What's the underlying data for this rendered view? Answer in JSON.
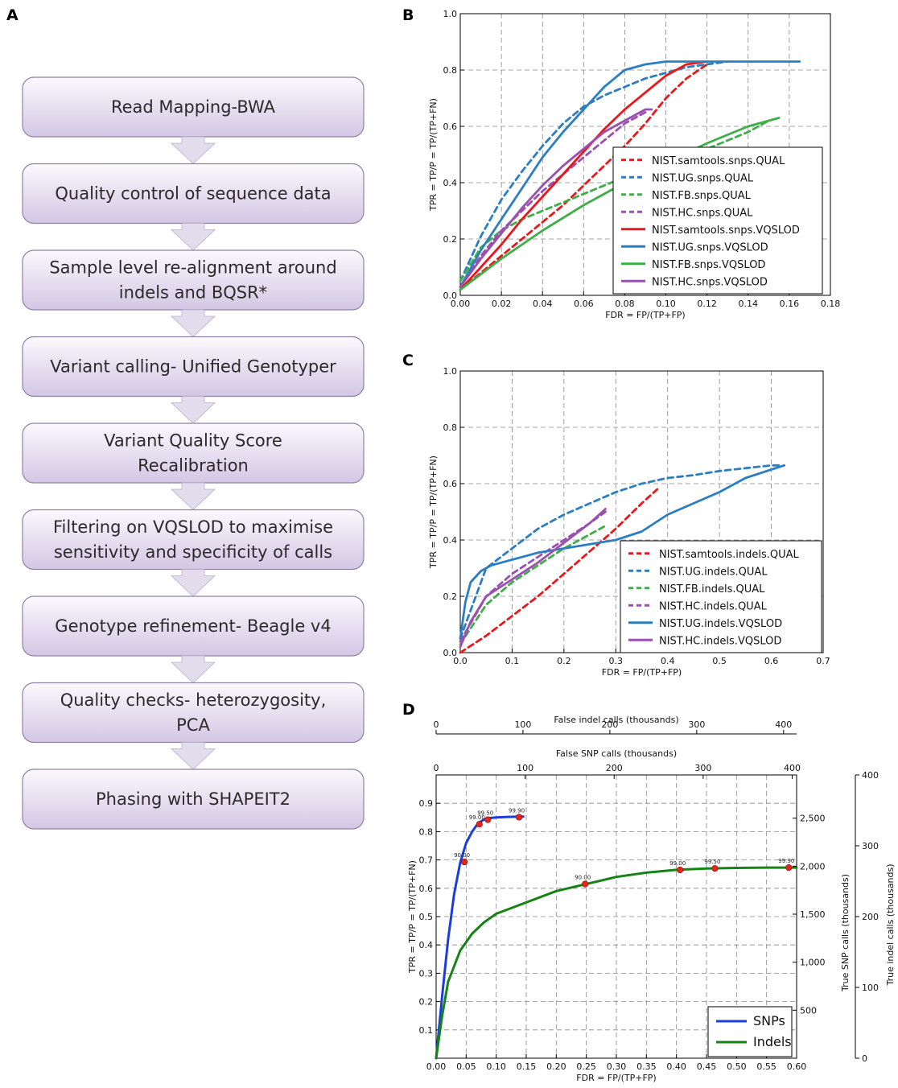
{
  "panel_labels": {
    "a": "A",
    "b": "B",
    "c": "C",
    "d": "D"
  },
  "workflow": {
    "steps": [
      {
        "lines": [
          "Read Mapping-BWA"
        ]
      },
      {
        "lines": [
          "Quality control of sequence data"
        ]
      },
      {
        "lines": [
          "Sample level re-alignment around",
          "indels and BQSR*"
        ]
      },
      {
        "lines": [
          "Variant calling- Unified Genotyper"
        ]
      },
      {
        "lines": [
          "Variant Quality Score",
          "Recalibration"
        ]
      },
      {
        "lines": [
          "Filtering on VQSLOD to maximise",
          "sensitivity and specificity of calls"
        ]
      },
      {
        "lines": [
          "Genotype refinement- Beagle v4"
        ]
      },
      {
        "lines": [
          "Quality checks- heterozygosity,",
          "PCA"
        ]
      },
      {
        "lines": [
          "Phasing with SHAPEIT2"
        ]
      }
    ],
    "colors": {
      "box_top": "#fbf9fd",
      "box_bottom": "#d3c7e4",
      "border": "#8e82a6",
      "arrow": "#e2dcec"
    }
  },
  "chart_data": [
    {
      "panel": "B",
      "type": "line",
      "xlabel": "FDR = FP/(TP+FP)",
      "ylabel": "TPR = TP/P = TP/(TP+FN)",
      "xlim": [
        0,
        0.18
      ],
      "ylim": [
        0,
        1.0
      ],
      "xticks": [
        0,
        0.02,
        0.04,
        0.06,
        0.08,
        0.1,
        0.12,
        0.14,
        0.16,
        0.18
      ],
      "xtick_labels": [
        "0.00",
        "0.02",
        "0.04",
        "0.06",
        "0.08",
        "0.10",
        "0.12",
        "0.14",
        "0.16",
        "0.18"
      ],
      "yticks": [
        0,
        0.2,
        0.4,
        0.6,
        0.8,
        1.0
      ],
      "ytick_labels": [
        "0.0",
        "0.2",
        "0.4",
        "0.6",
        "0.8",
        "1.0"
      ],
      "grid": true,
      "legend_position": "lower-right",
      "series": [
        {
          "name": "NIST.samtools.snps.QUAL",
          "color": "#e8191c",
          "dashed": true,
          "x": [
            0,
            0.01,
            0.02,
            0.03,
            0.04,
            0.05,
            0.06,
            0.07,
            0.08,
            0.09,
            0.1,
            0.11,
            0.12
          ],
          "y": [
            0.02,
            0.08,
            0.14,
            0.2,
            0.26,
            0.32,
            0.39,
            0.46,
            0.53,
            0.61,
            0.7,
            0.77,
            0.82
          ]
        },
        {
          "name": "NIST.UG.snps.QUAL",
          "color": "#2b7ec1",
          "dashed": true,
          "x": [
            0,
            0.01,
            0.02,
            0.03,
            0.04,
            0.05,
            0.06,
            0.07,
            0.08,
            0.09,
            0.1,
            0.11,
            0.12,
            0.13
          ],
          "y": [
            0.05,
            0.21,
            0.34,
            0.44,
            0.53,
            0.61,
            0.67,
            0.71,
            0.74,
            0.77,
            0.79,
            0.81,
            0.82,
            0.83
          ]
        },
        {
          "name": "NIST.FB.snps.QUAL",
          "color": "#3fae49",
          "dashed": true,
          "x": [
            0,
            0.01,
            0.02,
            0.03,
            0.04,
            0.05,
            0.06,
            0.08,
            0.1,
            0.12,
            0.14,
            0.15
          ],
          "y": [
            0.05,
            0.17,
            0.23,
            0.27,
            0.3,
            0.33,
            0.36,
            0.42,
            0.47,
            0.52,
            0.58,
            0.62
          ]
        },
        {
          "name": "NIST.HC.snps.QUAL",
          "color": "#9b4fb0",
          "dashed": true,
          "x": [
            0,
            0.01,
            0.02,
            0.03,
            0.04,
            0.05,
            0.06,
            0.07,
            0.08,
            0.09
          ],
          "y": [
            0.03,
            0.14,
            0.23,
            0.3,
            0.37,
            0.43,
            0.49,
            0.55,
            0.61,
            0.65
          ]
        },
        {
          "name": "NIST.samtools.snps.VQSLOD",
          "color": "#e8191c",
          "dashed": false,
          "x": [
            0,
            0.01,
            0.02,
            0.03,
            0.04,
            0.05,
            0.06,
            0.07,
            0.08,
            0.09,
            0.1,
            0.11,
            0.12
          ],
          "y": [
            0.02,
            0.1,
            0.18,
            0.27,
            0.35,
            0.43,
            0.51,
            0.59,
            0.66,
            0.72,
            0.78,
            0.82,
            0.83
          ]
        },
        {
          "name": "NIST.UG.snps.VQSLOD",
          "color": "#2b7ec1",
          "dashed": false,
          "x": [
            0,
            0.01,
            0.02,
            0.03,
            0.04,
            0.05,
            0.06,
            0.07,
            0.08,
            0.09,
            0.1,
            0.11,
            0.12,
            0.14,
            0.16,
            0.165
          ],
          "y": [
            0.03,
            0.16,
            0.27,
            0.38,
            0.49,
            0.58,
            0.66,
            0.74,
            0.8,
            0.82,
            0.83,
            0.83,
            0.83,
            0.83,
            0.83,
            0.83
          ]
        },
        {
          "name": "NIST.FB.snps.VQSLOD",
          "color": "#3fae49",
          "dashed": false,
          "x": [
            0,
            0.02,
            0.04,
            0.06,
            0.08,
            0.1,
            0.12,
            0.13,
            0.14,
            0.15,
            0.155
          ],
          "y": [
            0.02,
            0.13,
            0.23,
            0.32,
            0.4,
            0.47,
            0.54,
            0.57,
            0.6,
            0.62,
            0.63
          ]
        },
        {
          "name": "NIST.HC.snps.VQSLOD",
          "color": "#9b4fb0",
          "dashed": false,
          "x": [
            0,
            0.01,
            0.02,
            0.03,
            0.04,
            0.05,
            0.06,
            0.07,
            0.08,
            0.09,
            0.093
          ],
          "y": [
            0.03,
            0.13,
            0.22,
            0.31,
            0.39,
            0.46,
            0.52,
            0.58,
            0.62,
            0.66,
            0.66
          ]
        }
      ]
    },
    {
      "panel": "C",
      "type": "line",
      "xlabel": "FDR = FP/(TP+FP)",
      "ylabel": "TPR = TP/P = TP/(TP+FN)",
      "xlim": [
        0,
        0.7
      ],
      "ylim": [
        0,
        1.0
      ],
      "xticks": [
        0,
        0.1,
        0.2,
        0.3,
        0.4,
        0.5,
        0.6,
        0.7
      ],
      "xtick_labels": [
        "0.0",
        "0.1",
        "0.2",
        "0.3",
        "0.4",
        "0.5",
        "0.6",
        "0.7"
      ],
      "yticks": [
        0,
        0.2,
        0.4,
        0.6,
        0.8,
        1.0
      ],
      "ytick_labels": [
        "0.0",
        "0.2",
        "0.4",
        "0.6",
        "0.8",
        "1.0"
      ],
      "grid": true,
      "legend_position": "lower-right",
      "series": [
        {
          "name": "NIST.samtools.indels.QUAL",
          "color": "#e8191c",
          "dashed": true,
          "x": [
            0,
            0.05,
            0.1,
            0.15,
            0.2,
            0.25,
            0.3,
            0.35,
            0.38
          ],
          "y": [
            0,
            0.06,
            0.13,
            0.2,
            0.28,
            0.36,
            0.44,
            0.53,
            0.58
          ]
        },
        {
          "name": "NIST.UG.indels.QUAL",
          "color": "#2b7ec1",
          "dashed": true,
          "x": [
            0,
            0.05,
            0.1,
            0.15,
            0.2,
            0.25,
            0.3,
            0.35,
            0.4,
            0.45,
            0.5,
            0.55,
            0.6,
            0.62
          ],
          "y": [
            0.05,
            0.3,
            0.37,
            0.44,
            0.49,
            0.53,
            0.57,
            0.6,
            0.62,
            0.63,
            0.645,
            0.655,
            0.665,
            0.665
          ]
        },
        {
          "name": "NIST.FB.indels.QUAL",
          "color": "#3fae49",
          "dashed": true,
          "x": [
            0,
            0.05,
            0.1,
            0.15,
            0.2,
            0.25,
            0.28
          ],
          "y": [
            0.03,
            0.17,
            0.25,
            0.31,
            0.37,
            0.42,
            0.45
          ]
        },
        {
          "name": "NIST.HC.indels.QUAL",
          "color": "#9b4fb0",
          "dashed": true,
          "x": [
            0,
            0.05,
            0.1,
            0.15,
            0.2,
            0.25,
            0.28
          ],
          "y": [
            0.04,
            0.2,
            0.28,
            0.34,
            0.4,
            0.46,
            0.5
          ]
        },
        {
          "name": "NIST.UG.indels.VQSLOD",
          "color": "#2b7ec1",
          "dashed": false,
          "x": [
            0,
            0.01,
            0.02,
            0.04,
            0.06,
            0.1,
            0.15,
            0.2,
            0.25,
            0.3,
            0.35,
            0.4,
            0.45,
            0.5,
            0.55,
            0.6,
            0.625
          ],
          "y": [
            0.05,
            0.18,
            0.25,
            0.29,
            0.31,
            0.33,
            0.355,
            0.37,
            0.385,
            0.4,
            0.43,
            0.49,
            0.53,
            0.57,
            0.62,
            0.65,
            0.665
          ]
        },
        {
          "name": "NIST.HC.indels.VQSLOD",
          "color": "#9b4fb0",
          "dashed": false,
          "x": [
            0,
            0.02,
            0.05,
            0.1,
            0.15,
            0.2,
            0.25,
            0.28
          ],
          "y": [
            0.02,
            0.11,
            0.2,
            0.26,
            0.32,
            0.39,
            0.46,
            0.51
          ]
        }
      ]
    },
    {
      "panel": "D",
      "type": "line",
      "xlabel": "FDR = FP/(TP+FP)",
      "ylabel": "TPR = TP/P = TP/(TP+FN)",
      "xlim": [
        0,
        0.6
      ],
      "ylim": [
        0,
        1.0
      ],
      "xticks": [
        0,
        0.05,
        0.1,
        0.15,
        0.2,
        0.25,
        0.3,
        0.35,
        0.4,
        0.45,
        0.5,
        0.55,
        0.6
      ],
      "xtick_labels": [
        "0.00",
        "0.05",
        "0.10",
        "0.15",
        "0.20",
        "0.25",
        "0.30",
        "0.35",
        "0.40",
        "0.45",
        "0.50",
        "0.55",
        "0.60"
      ],
      "yticks": [
        0.1,
        0.2,
        0.3,
        0.4,
        0.5,
        0.6,
        0.7,
        0.8,
        0.9
      ],
      "ytick_labels": [
        "0.1",
        "0.2",
        "0.3",
        "0.4",
        "0.5",
        "0.6",
        "0.7",
        "0.8",
        "0.9"
      ],
      "grid": true,
      "legend_position": "lower-right",
      "top_axis_1": {
        "label": "False indel calls (thousands)",
        "color": "#2e8b2e",
        "ticks": [
          0,
          100,
          200,
          300,
          400
        ],
        "xmax": 415
      },
      "top_axis_2": {
        "label": "False SNP calls (thousands)",
        "color": "#2a39e0",
        "ticks": [
          0,
          100,
          200,
          300,
          400
        ],
        "xmax": 405
      },
      "right_axis_1": {
        "label": "True SNP calls (thousands)",
        "color": "#2a39e0",
        "ticks": [
          500,
          1000,
          1500,
          2000,
          2500
        ],
        "tick_labels": [
          "500",
          "1,000",
          "1,500",
          "2,000",
          "2,500"
        ],
        "ymax": 2950
      },
      "right_axis_2": {
        "label": "True indel calls (thousands)",
        "color": "#2e8b2e",
        "ticks": [
          0,
          100,
          200,
          300,
          400
        ],
        "ymax": 400
      },
      "series": [
        {
          "name": "SNPs",
          "color": "#1b3ddc",
          "dashed": false,
          "x": [
            0,
            0.01,
            0.02,
            0.03,
            0.04,
            0.05,
            0.06,
            0.07,
            0.08,
            0.09,
            0.1,
            0.12,
            0.14,
            0.145
          ],
          "y": [
            0,
            0.22,
            0.42,
            0.58,
            0.69,
            0.76,
            0.8,
            0.83,
            0.843,
            0.848,
            0.85,
            0.852,
            0.853,
            0.853
          ],
          "markers": [
            {
              "x": 0.047,
              "y": 0.693,
              "label": "90.00"
            },
            {
              "x": 0.072,
              "y": 0.826,
              "label": "99.00"
            },
            {
              "x": 0.086,
              "y": 0.842,
              "label": "99.50"
            },
            {
              "x": 0.138,
              "y": 0.851,
              "label": "99.90"
            }
          ]
        },
        {
          "name": "Indels",
          "color": "#158315",
          "dashed": false,
          "x": [
            0,
            0.01,
            0.02,
            0.04,
            0.06,
            0.08,
            0.1,
            0.15,
            0.2,
            0.25,
            0.3,
            0.35,
            0.4,
            0.45,
            0.5,
            0.55,
            0.6
          ],
          "y": [
            0,
            0.15,
            0.27,
            0.38,
            0.44,
            0.48,
            0.51,
            0.55,
            0.59,
            0.615,
            0.64,
            0.655,
            0.665,
            0.67,
            0.672,
            0.673,
            0.673
          ],
          "markers": [
            {
              "x": 0.248,
              "y": 0.615,
              "label": "90.00"
            },
            {
              "x": 0.406,
              "y": 0.665,
              "label": "99.00"
            },
            {
              "x": 0.464,
              "y": 0.67,
              "label": "99.50"
            },
            {
              "x": 0.587,
              "y": 0.673,
              "label": "99.90"
            }
          ]
        }
      ]
    }
  ]
}
